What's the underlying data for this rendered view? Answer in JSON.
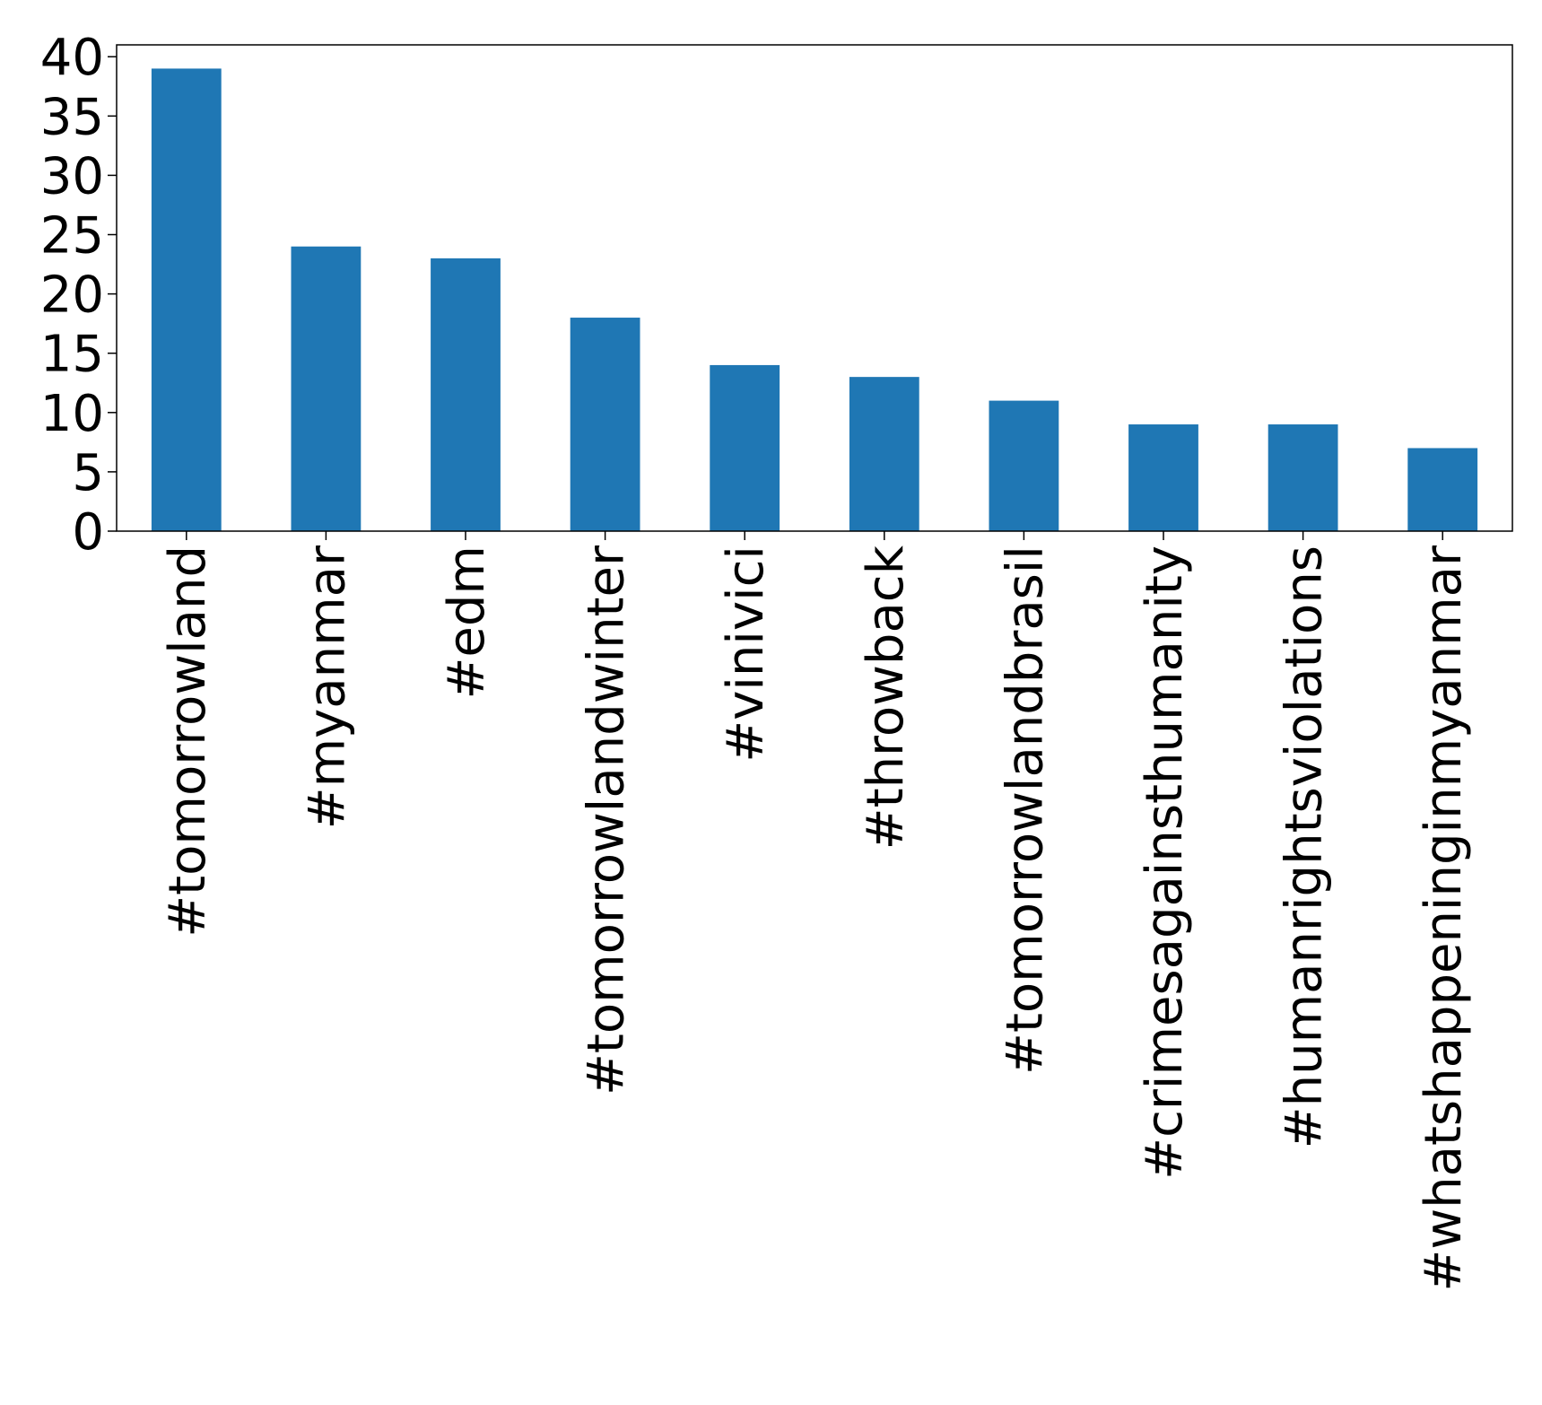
{
  "chart_data": {
    "type": "bar",
    "title": "",
    "xlabel": "",
    "ylabel": "",
    "categories": [
      "#tomorrowland",
      "#myanmar",
      "#edm",
      "#tomorrowlandwinter",
      "#vinivici",
      "#throwback",
      "#tomorrowlandbrasil",
      "#crimesagainsthumanity",
      "#humanrightsviolations",
      "#whatshappeninginmyanmar"
    ],
    "values": [
      39,
      24,
      23,
      18,
      14,
      13,
      11,
      9,
      9,
      7
    ],
    "ylim": [
      0,
      41
    ],
    "yticks": [
      0,
      5,
      10,
      15,
      20,
      25,
      30,
      35,
      40
    ],
    "grid": false,
    "legend": "none",
    "colors": {
      "bar": "#1f77b4",
      "axis": "#000000",
      "text": "#000000",
      "background": "#ffffff"
    }
  }
}
